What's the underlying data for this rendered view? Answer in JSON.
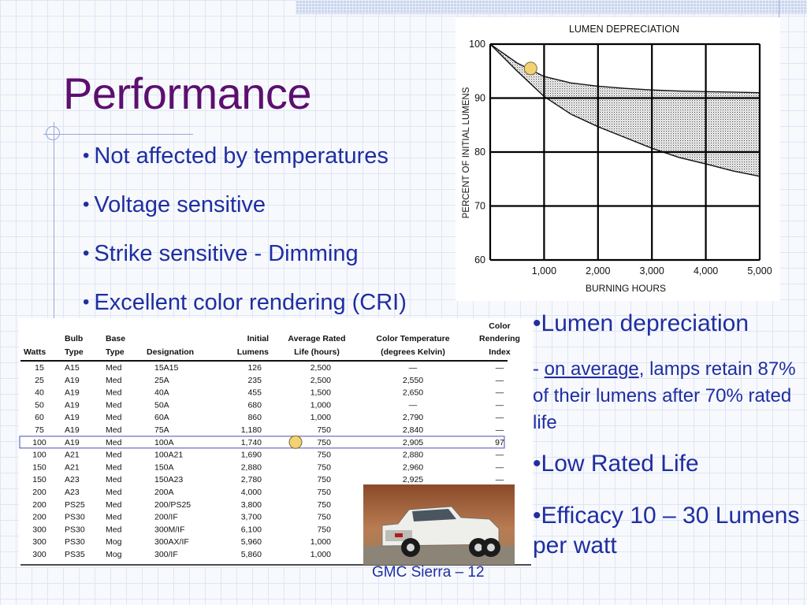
{
  "title": "Performance",
  "left_bullets": [
    "Not affected by temperatures",
    "Voltage sensitive",
    "Strike sensitive - Dimming",
    "Excellent color rendering (CRI)"
  ],
  "right": {
    "bullet1": "Lumen depreciation",
    "sub_prefix": "- ",
    "sub_underline": "on average",
    "sub_rest": ", lamps retain 87% of their lumens after 70% rated life",
    "bullet2": "Low Rated Life",
    "bullet3": "Efficacy  10 – 30 Lumens per watt"
  },
  "caption": "GMC Sierra – 12",
  "colors": {
    "title": "#5c0f6e",
    "text": "#1f2ea0",
    "marker": "#f2d272"
  },
  "chart_data": {
    "type": "area",
    "title": "LUMEN DEPRECIATION",
    "xlabel": "BURNING HOURS",
    "ylabel": "PERCENT OF INITIAL LUMENS",
    "xlim": [
      0,
      5000
    ],
    "ylim": [
      60,
      100
    ],
    "x_ticks": [
      "1,000",
      "2,000",
      "3,000",
      "4,000",
      "5,000"
    ],
    "y_ticks": [
      "100",
      "90",
      "80",
      "70",
      "60"
    ],
    "grid": true,
    "series": [
      {
        "x": [
          0,
          500,
          1000,
          1500,
          2000,
          2500,
          3000,
          3500,
          4000,
          4500,
          5000
        ],
        "values": [
          100,
          96.5,
          94,
          92.8,
          92.2,
          91.8,
          91.5,
          91.3,
          91.2,
          91.1,
          91
        ]
      },
      {
        "x": [
          0,
          500,
          1000,
          1500,
          2000,
          2500,
          3000,
          3500,
          4000,
          4500,
          5000
        ],
        "values": [
          100,
          95,
          90.3,
          87,
          84.7,
          82.7,
          80.7,
          79,
          77.8,
          76.5,
          75.5
        ]
      }
    ],
    "marker": {
      "x": 750,
      "y": 95.5
    }
  },
  "table": {
    "headers": [
      [
        "",
        "",
        "Watts"
      ],
      [
        "",
        "Bulb",
        "Type"
      ],
      [
        "",
        "Base",
        "Type"
      ],
      [
        "",
        "",
        "Designation"
      ],
      [
        "",
        "Initial",
        "Lumens"
      ],
      [
        "",
        "Average Rated",
        "Life (hours)"
      ],
      [
        "",
        "Color Temperature",
        "(degrees Kelvin)"
      ],
      [
        "Color",
        "Rendering",
        "Index"
      ]
    ],
    "rows": [
      [
        "15",
        "A15",
        "Med",
        "15A15",
        "126",
        "2,500",
        "—",
        "—"
      ],
      [
        "25",
        "A19",
        "Med",
        "25A",
        "235",
        "2,500",
        "2,550",
        "—"
      ],
      [
        "40",
        "A19",
        "Med",
        "40A",
        "455",
        "1,500",
        "2,650",
        "—"
      ],
      [
        "50",
        "A19",
        "Med",
        "50A",
        "680",
        "1,000",
        "—",
        "—"
      ],
      [
        "60",
        "A19",
        "Med",
        "60A",
        "860",
        "1,000",
        "2,790",
        "—"
      ],
      [
        "75",
        "A19",
        "Med",
        "75A",
        "1,180",
        "750",
        "2,840",
        "—"
      ],
      [
        "100",
        "A19",
        "Med",
        "100A",
        "1,740",
        "750",
        "2,905",
        "97"
      ],
      [
        "100",
        "A21",
        "Med",
        "100A21",
        "1,690",
        "750",
        "2,880",
        "—"
      ],
      [
        "150",
        "A21",
        "Med",
        "150A",
        "2,880",
        "750",
        "2,960",
        "—"
      ],
      [
        "150",
        "A23",
        "Med",
        "150A23",
        "2,780",
        "750",
        "2,925",
        "—"
      ],
      [
        "200",
        "A23",
        "Med",
        "200A",
        "4,000",
        "750",
        "",
        ""
      ],
      [
        "200",
        "PS25",
        "Med",
        "200/PS25",
        "3,800",
        "750",
        "",
        ""
      ],
      [
        "200",
        "PS30",
        "Med",
        "200/IF",
        "3,700",
        "750",
        "",
        ""
      ],
      [
        "300",
        "PS30",
        "Med",
        "300M/IF",
        "6,100",
        "750",
        "",
        ""
      ],
      [
        "300",
        "PS30",
        "Mog",
        "300AX/IF",
        "5,960",
        "1,000",
        "",
        ""
      ],
      [
        "300",
        "PS35",
        "Mog",
        "300/IF",
        "5,860",
        "1,000",
        "",
        ""
      ]
    ],
    "highlight_row": 6
  }
}
